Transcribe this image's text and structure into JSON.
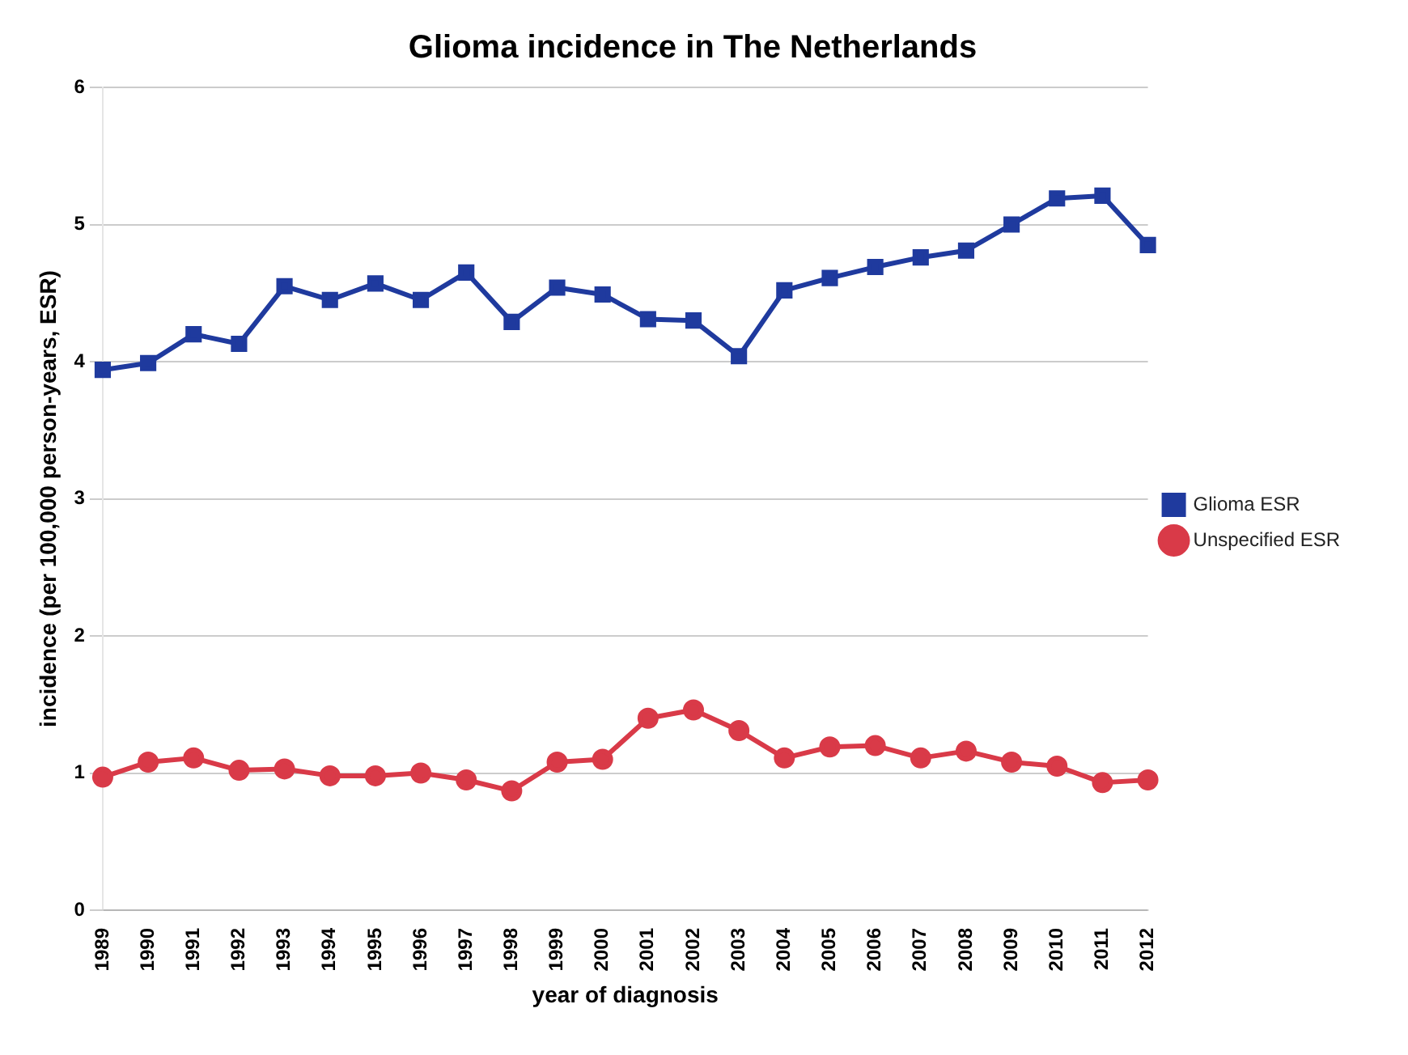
{
  "chart_data": {
    "type": "line",
    "title": "Glioma incidence in The Netherlands",
    "xlabel": "year of diagnosis",
    "ylabel": "incidence (per 100,000 person-years, ESR)",
    "categories": [
      "1989",
      "1990",
      "1991",
      "1992",
      "1993",
      "1994",
      "1995",
      "1996",
      "1997",
      "1998",
      "1999",
      "2000",
      "2001",
      "2002",
      "2003",
      "2004",
      "2005",
      "2006",
      "2007",
      "2008",
      "2009",
      "2010",
      "2011",
      "2012"
    ],
    "series": [
      {
        "name": "Glioma ESR",
        "color": "#1f3a9e",
        "marker": "square",
        "values": [
          3.94,
          3.99,
          4.2,
          4.13,
          4.55,
          4.45,
          4.57,
          4.45,
          4.65,
          4.29,
          4.54,
          4.49,
          4.31,
          4.3,
          4.04,
          4.52,
          4.61,
          4.69,
          4.76,
          4.81,
          5.0,
          5.19,
          5.21,
          4.85
        ]
      },
      {
        "name": "Unspecified ESR",
        "color": "#d93a48",
        "marker": "circle",
        "values": [
          0.97,
          1.08,
          1.11,
          1.02,
          1.03,
          0.98,
          0.98,
          1.0,
          0.95,
          0.87,
          1.08,
          1.1,
          1.4,
          1.46,
          1.31,
          1.11,
          1.19,
          1.2,
          1.11,
          1.16,
          1.08,
          1.05,
          0.93,
          0.95
        ]
      }
    ],
    "ylim": [
      0,
      6
    ],
    "yticks": [
      0,
      1,
      2,
      3,
      4,
      5,
      6
    ],
    "grid": "y",
    "legend": "right",
    "line_style": "solid"
  }
}
